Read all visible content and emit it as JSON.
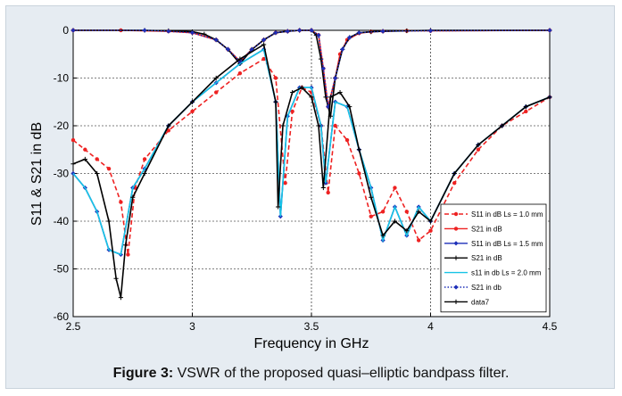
{
  "caption": {
    "label": "Figure 3:",
    "text": " VSWR of the proposed quasi–elliptic bandpass filter."
  },
  "chart_data": {
    "type": "line",
    "xlabel": "Frequency in GHz",
    "ylabel": "S11 & S21 in dB",
    "xlim": [
      2.5,
      4.5
    ],
    "ylim": [
      -60,
      0
    ],
    "xticks": [
      2.5,
      3,
      3.5,
      4,
      4.5
    ],
    "yticks": [
      0,
      -10,
      -20,
      -30,
      -40,
      -50,
      -60
    ],
    "grid": true,
    "legend_position": "bottom-right",
    "series": [
      {
        "name": "S11 in dB Ls = 1.0 mm",
        "color": "#ee2222",
        "style": "dashed",
        "marker": "dot",
        "x": [
          2.5,
          2.55,
          2.6,
          2.65,
          2.7,
          2.73,
          2.76,
          2.8,
          2.9,
          3.0,
          3.1,
          3.2,
          3.3,
          3.35,
          3.39,
          3.42,
          3.46,
          3.5,
          3.54,
          3.57,
          3.6,
          3.65,
          3.7,
          3.75,
          3.8,
          3.85,
          3.9,
          3.95,
          4.0,
          4.1,
          4.2,
          4.3,
          4.4,
          4.5
        ],
        "y": [
          -23,
          -25,
          -27,
          -29,
          -36,
          -47,
          -33,
          -27,
          -21,
          -17,
          -13,
          -9,
          -6,
          -10,
          -32,
          -17,
          -12,
          -13,
          -20,
          -34,
          -20,
          -23,
          -30,
          -39,
          -38,
          -33,
          -38,
          -44,
          -42,
          -32,
          -25,
          -20,
          -17,
          -14
        ]
      },
      {
        "name": "S21 in dB",
        "color": "#ee2222",
        "style": "solid",
        "marker": "dot",
        "x": [
          2.5,
          2.7,
          2.9,
          3.0,
          3.1,
          3.15,
          3.2,
          3.25,
          3.3,
          3.35,
          3.4,
          3.45,
          3.5,
          3.53,
          3.55,
          3.57,
          3.6,
          3.62,
          3.65,
          3.7,
          3.75,
          3.8,
          3.9,
          4.0,
          4.5
        ],
        "y": [
          0,
          0,
          -0.2,
          -0.5,
          -2,
          -4,
          -6.5,
          -4,
          -2,
          -0.5,
          -0.2,
          0,
          0,
          -1,
          -8,
          -16,
          -10,
          -5,
          -2,
          -0.6,
          -0.3,
          -0.2,
          -0.1,
          -0.1,
          0
        ]
      },
      {
        "name": "S11 in dB Ls = 1.5 mm",
        "color": "#1d2fb8",
        "style": "solid",
        "marker": "diamond",
        "x": [
          2.5,
          2.55,
          2.6,
          2.65,
          2.7,
          2.75,
          2.8,
          2.9,
          3.0,
          3.1,
          3.2,
          3.3,
          3.35,
          3.37,
          3.4,
          3.45,
          3.5,
          3.54,
          3.56,
          3.6,
          3.65,
          3.7,
          3.75,
          3.8,
          3.85,
          3.9,
          3.95,
          4.0,
          4.1,
          4.2,
          4.3,
          4.4,
          4.5
        ],
        "y": [
          -30,
          -33,
          -38,
          -46,
          -47,
          -33,
          -29,
          -20,
          -15,
          -11,
          -7,
          -4,
          -15,
          -39,
          -18,
          -12,
          -12,
          -20,
          -32,
          -15,
          -16,
          -25,
          -33,
          -44,
          -37,
          -43,
          -37,
          -40,
          -30,
          -24,
          -20,
          -16,
          -14
        ]
      },
      {
        "name": "S21 in dB",
        "color": "#000000",
        "style": "solid",
        "marker": "plus",
        "x": [
          2.5,
          2.8,
          2.9,
          3.0,
          3.05,
          3.1,
          3.15,
          3.2,
          3.25,
          3.3,
          3.35,
          3.4,
          3.45,
          3.5,
          3.52,
          3.54,
          3.56,
          3.58,
          3.6,
          3.63,
          3.66,
          3.7,
          3.75,
          3.8,
          3.9,
          4.0,
          4.5
        ],
        "y": [
          0,
          0,
          -0.1,
          -0.3,
          -0.8,
          -2,
          -4,
          -7,
          -4,
          -2,
          -0.5,
          -0.2,
          0,
          0,
          -1,
          -6,
          -14,
          -18,
          -10,
          -4,
          -1.5,
          -0.5,
          -0.3,
          -0.2,
          -0.1,
          0,
          0
        ]
      },
      {
        "name": "s11 in db Ls = 2.0 mm",
        "color": "#17c4e6",
        "style": "solid",
        "marker": "none",
        "x": [
          2.5,
          2.55,
          2.6,
          2.65,
          2.7,
          2.75,
          2.8,
          2.9,
          3.0,
          3.1,
          3.2,
          3.3,
          3.35,
          3.37,
          3.4,
          3.45,
          3.5,
          3.54,
          3.56,
          3.6,
          3.65,
          3.7,
          3.75,
          3.8,
          3.85,
          3.9,
          3.95,
          4.0,
          4.1,
          4.2,
          4.3,
          4.4,
          4.5
        ],
        "y": [
          -30,
          -33,
          -38,
          -46,
          -47,
          -33,
          -29,
          -20,
          -15,
          -11,
          -7,
          -4,
          -15,
          -39,
          -18,
          -12,
          -12,
          -20,
          -32,
          -15,
          -16,
          -25,
          -33,
          -44,
          -37,
          -43,
          -37,
          -40,
          -30,
          -24,
          -20,
          -16,
          -14
        ]
      },
      {
        "name": "S21 in db",
        "color": "#1d2fb8",
        "style": "dotted",
        "marker": "diamond",
        "x": [
          2.5,
          2.8,
          2.9,
          3.0,
          3.1,
          3.15,
          3.2,
          3.25,
          3.3,
          3.35,
          3.4,
          3.45,
          3.5,
          3.53,
          3.55,
          3.57,
          3.6,
          3.63,
          3.66,
          3.7,
          3.8,
          4.0,
          4.5
        ],
        "y": [
          0,
          0,
          -0.2,
          -0.5,
          -2,
          -4,
          -6.5,
          -4,
          -2,
          -0.5,
          -0.2,
          0,
          0,
          -1,
          -8,
          -16,
          -10,
          -4,
          -1.5,
          -0.5,
          -0.2,
          -0.1,
          0
        ]
      },
      {
        "name": "data7",
        "color": "#000000",
        "style": "solid",
        "marker": "plus",
        "x": [
          2.5,
          2.55,
          2.6,
          2.65,
          2.68,
          2.7,
          2.72,
          2.75,
          2.8,
          2.9,
          3.0,
          3.1,
          3.2,
          3.3,
          3.35,
          3.36,
          3.38,
          3.42,
          3.46,
          3.5,
          3.53,
          3.55,
          3.58,
          3.62,
          3.66,
          3.7,
          3.75,
          3.8,
          3.85,
          3.9,
          3.95,
          4.0,
          4.1,
          4.2,
          4.3,
          4.4,
          4.5
        ],
        "y": [
          -28,
          -27,
          -30,
          -40,
          -52,
          -56,
          -45,
          -35,
          -30,
          -20,
          -15,
          -10,
          -6,
          -3,
          -15,
          -37,
          -20,
          -13,
          -12,
          -14,
          -20,
          -33,
          -14,
          -13,
          -16,
          -25,
          -35,
          -43,
          -40,
          -42,
          -38,
          -40,
          -30,
          -24,
          -20,
          -16,
          -14
        ]
      }
    ]
  }
}
